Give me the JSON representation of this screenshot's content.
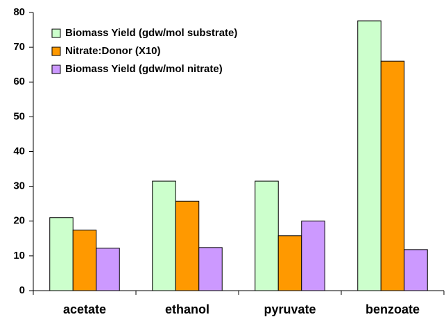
{
  "chart_data": {
    "type": "bar",
    "categories": [
      "acetate",
      "ethanol",
      "pyruvate",
      "benzoate"
    ],
    "series": [
      {
        "name": "Biomass Yield (gdw/mol substrate)",
        "color": "#ccffcc",
        "values": [
          21,
          31.5,
          31.5,
          77.6
        ]
      },
      {
        "name": "Nitrate:Donor (X10)",
        "color": "#ff9900",
        "values": [
          17.4,
          25.7,
          15.8,
          66
        ]
      },
      {
        "name": "Biomass Yield (gdw/mol nitrate)",
        "color": "#cc99ff",
        "values": [
          12.2,
          12.4,
          20,
          11.8
        ]
      }
    ],
    "ylim": [
      0,
      80
    ],
    "yticks": [
      0,
      10,
      20,
      30,
      40,
      50,
      60,
      70,
      80
    ],
    "grid": false,
    "legend": "top-left"
  }
}
